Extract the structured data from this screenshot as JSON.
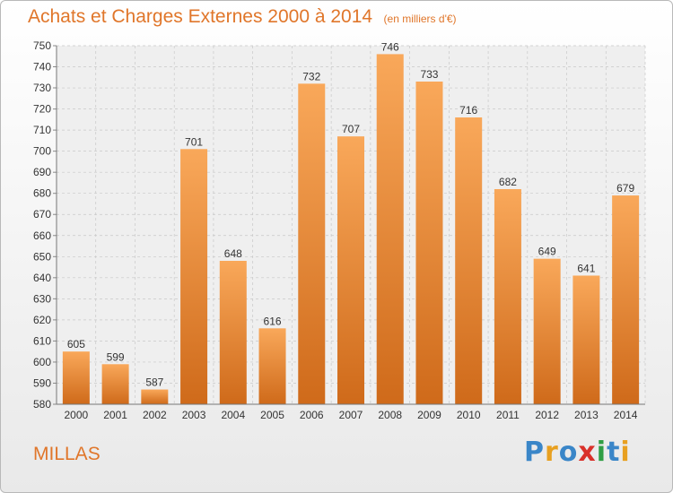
{
  "title": "Achats et Charges Externes 2000 à 2014",
  "subtitle": "(en milliers d'€)",
  "place": "MILLAS",
  "logo": {
    "text": "Proxiti",
    "letters": [
      {
        "ch": "P",
        "color": "#3a86c8"
      },
      {
        "ch": "r",
        "color": "#e8a020"
      },
      {
        "ch": "o",
        "color": "#3a86c8"
      },
      {
        "ch": "x",
        "color": "#d9312a"
      },
      {
        "ch": "i",
        "color": "#2f9e44"
      },
      {
        "ch": "t",
        "color": "#3a86c8"
      },
      {
        "ch": "i",
        "color": "#e8a020"
      }
    ]
  },
  "colors": {
    "accent": "#e0762a",
    "bar_light": "#f9a85a",
    "bar_dark": "#cf6a1a",
    "grid": "#c8c8c8"
  },
  "chart_data": {
    "type": "bar",
    "categories": [
      "2000",
      "2001",
      "2002",
      "2003",
      "2004",
      "2005",
      "2006",
      "2007",
      "2008",
      "2009",
      "2010",
      "2011",
      "2012",
      "2013",
      "2014"
    ],
    "values": [
      605,
      599,
      587,
      701,
      648,
      616,
      732,
      707,
      746,
      733,
      716,
      682,
      649,
      641,
      679
    ],
    "ylim": [
      580,
      750
    ],
    "ytick_step": 10,
    "grid": true
  }
}
